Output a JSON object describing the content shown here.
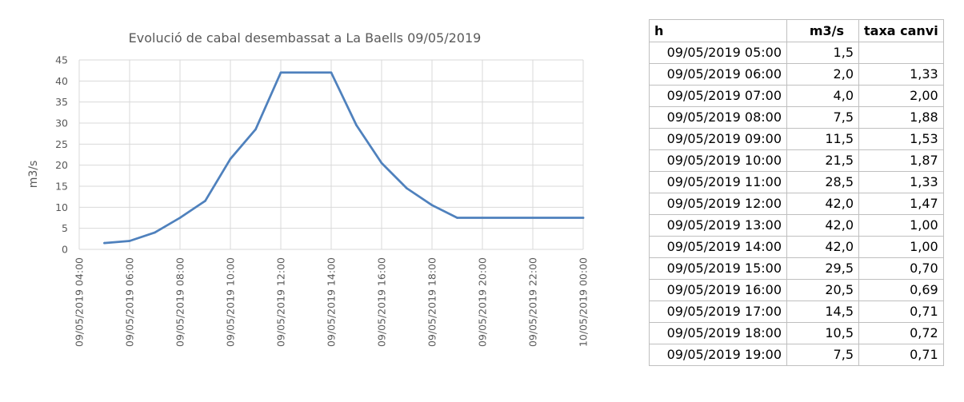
{
  "chart_data": {
    "type": "line",
    "title": "Evolució de cabal desembassat a La Baells 09/05/2019",
    "ylabel": "m3/s",
    "xlabel": "",
    "ylim": [
      0,
      45
    ],
    "yticks": [
      0,
      5,
      10,
      15,
      20,
      25,
      30,
      35,
      40,
      45
    ],
    "xlim": [
      "09/05/2019 04:00",
      "10/05/2019 00:00"
    ],
    "xtick_labels": [
      "09/05/2019 04:00",
      "09/05/2019 06:00",
      "09/05/2019 08:00",
      "09/05/2019 10:00",
      "09/05/2019 12:00",
      "09/05/2019 14:00",
      "09/05/2019 16:00",
      "09/05/2019 18:00",
      "09/05/2019 20:00",
      "09/05/2019 22:00",
      "10/05/2019 00:00"
    ],
    "grid": "horizontal",
    "series": [
      {
        "color": "#4f81bd",
        "x": [
          "09/05/2019 05:00",
          "09/05/2019 06:00",
          "09/05/2019 07:00",
          "09/05/2019 08:00",
          "09/05/2019 09:00",
          "09/05/2019 10:00",
          "09/05/2019 11:00",
          "09/05/2019 12:00",
          "09/05/2019 13:00",
          "09/05/2019 14:00",
          "09/05/2019 15:00",
          "09/05/2019 16:00",
          "09/05/2019 17:00",
          "09/05/2019 18:00",
          "09/05/2019 19:00",
          "10/05/2019 00:00"
        ],
        "values": [
          1.5,
          2.0,
          4.0,
          7.5,
          11.5,
          21.5,
          28.5,
          42.0,
          42.0,
          42.0,
          29.5,
          20.5,
          14.5,
          10.5,
          7.5,
          7.5
        ]
      }
    ]
  },
  "table": {
    "headers": [
      "h",
      "m3/s",
      "taxa canvi"
    ],
    "rows": [
      [
        "09/05/2019 05:00",
        "1,5",
        ""
      ],
      [
        "09/05/2019 06:00",
        "2,0",
        "1,33"
      ],
      [
        "09/05/2019 07:00",
        "4,0",
        "2,00"
      ],
      [
        "09/05/2019 08:00",
        "7,5",
        "1,88"
      ],
      [
        "09/05/2019 09:00",
        "11,5",
        "1,53"
      ],
      [
        "09/05/2019 10:00",
        "21,5",
        "1,87"
      ],
      [
        "09/05/2019 11:00",
        "28,5",
        "1,33"
      ],
      [
        "09/05/2019 12:00",
        "42,0",
        "1,47"
      ],
      [
        "09/05/2019 13:00",
        "42,0",
        "1,00"
      ],
      [
        "09/05/2019 14:00",
        "42,0",
        "1,00"
      ],
      [
        "09/05/2019 15:00",
        "29,5",
        "0,70"
      ],
      [
        "09/05/2019 16:00",
        "20,5",
        "0,69"
      ],
      [
        "09/05/2019 17:00",
        "14,5",
        "0,71"
      ],
      [
        "09/05/2019 18:00",
        "10,5",
        "0,72"
      ],
      [
        "09/05/2019 19:00",
        "7,5",
        "0,71"
      ]
    ]
  }
}
